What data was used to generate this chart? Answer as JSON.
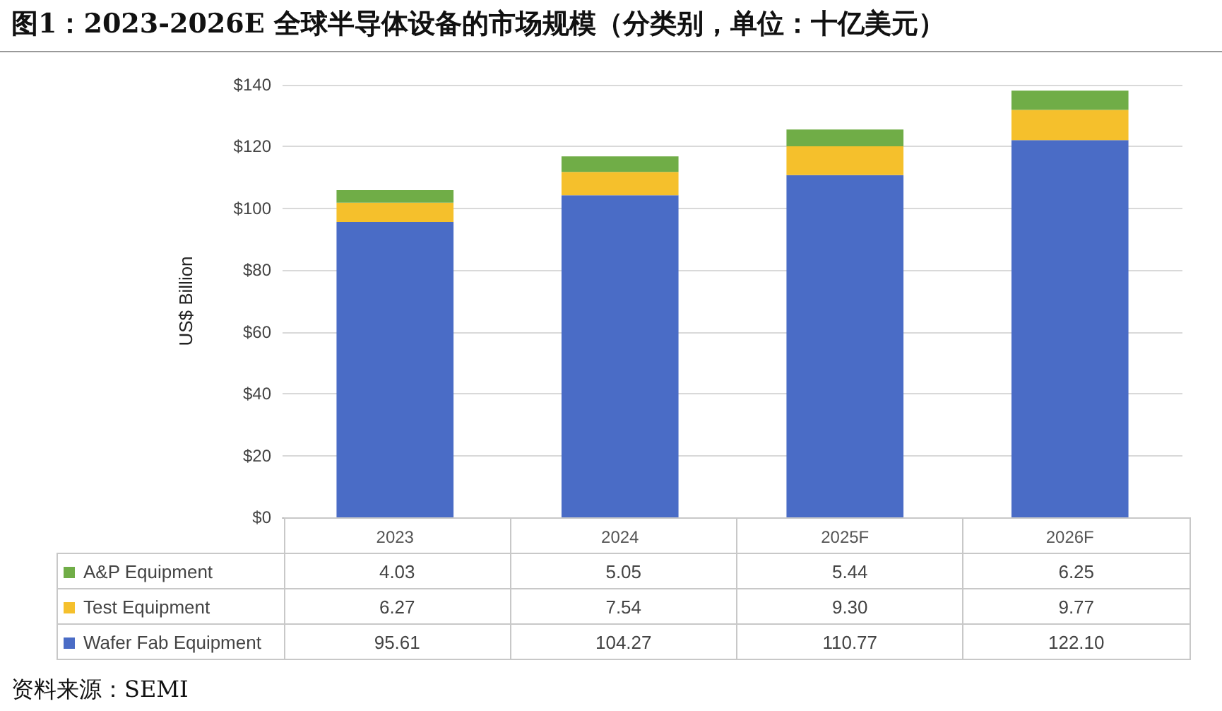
{
  "chart_data": {
    "type": "bar",
    "title": "图1：2023-2026E 全球半导体设备的市场规模（分类别，单位：十亿美元）",
    "ylabel": "US$ Billion",
    "categories": [
      "2023",
      "2024",
      "2025F",
      "2026F"
    ],
    "stacked": true,
    "series": [
      {
        "name": "Wafer Fab Equipment",
        "color": "#4a6cc6",
        "values": [
          95.61,
          104.27,
          110.77,
          122.1
        ],
        "value_labels": [
          "95.61",
          "104.27",
          "110.77",
          "122.10"
        ]
      },
      {
        "name": "Test Equipment",
        "color": "#f5c02c",
        "values": [
          6.27,
          7.54,
          9.3,
          9.77
        ],
        "value_labels": [
          "6.27",
          "7.54",
          "9.30",
          "9.77"
        ]
      },
      {
        "name": "A&P Equipment",
        "color": "#70ad47",
        "values": [
          4.03,
          5.05,
          5.44,
          6.25
        ],
        "value_labels": [
          "4.03",
          "5.05",
          "5.44",
          "6.25"
        ]
      }
    ],
    "ylim": [
      0,
      140
    ],
    "yticks": [
      {
        "value": 0,
        "label": "$0"
      },
      {
        "value": 20,
        "label": "$20"
      },
      {
        "value": 40,
        "label": "$40"
      },
      {
        "value": 60,
        "label": "$60"
      },
      {
        "value": 80,
        "label": "$80"
      },
      {
        "value": 100,
        "label": "$100"
      },
      {
        "value": 120,
        "label": "$120"
      },
      {
        "value": 140,
        "label": "$140"
      }
    ],
    "grid": "y",
    "legend": "bottom left",
    "annotations": [
      "资料来源：SEMI"
    ]
  }
}
